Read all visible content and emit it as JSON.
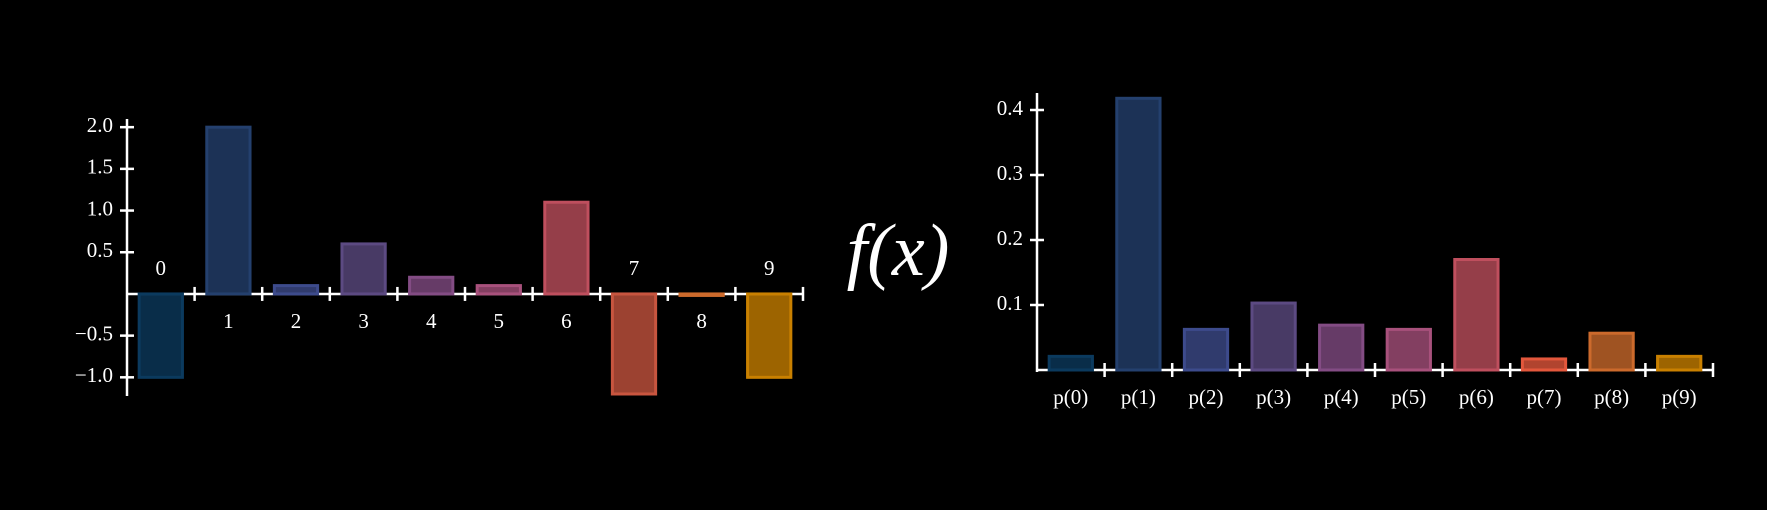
{
  "chart_data": [
    {
      "type": "bar",
      "categories": [
        "0",
        "1",
        "2",
        "3",
        "4",
        "5",
        "6",
        "7",
        "8",
        "9"
      ],
      "values": [
        -1.0,
        2.0,
        0.1,
        0.6,
        0.2,
        0.1,
        1.1,
        -1.2,
        0.0,
        -1.0
      ],
      "colors": [
        "#0b3a5e",
        "#24406e",
        "#3d4b8c",
        "#5c4a82",
        "#834c84",
        "#a8517c",
        "#bf4f5e",
        "#c8553f",
        "#cc6a2c",
        "#c98000"
      ],
      "ylim": [
        -1.2,
        2.05
      ],
      "yticks": [
        {
          "value": -1.0,
          "label": "−1.0"
        },
        {
          "value": -0.5,
          "label": "−0.5"
        },
        {
          "value": 0.5,
          "label": "0.5"
        },
        {
          "value": 1.0,
          "label": "1.0"
        },
        {
          "value": 1.5,
          "label": "1.5"
        },
        {
          "value": 2.0,
          "label": "2.0"
        }
      ]
    },
    {
      "type": "bar",
      "categories": [
        "p(0)",
        "p(1)",
        "p(2)",
        "p(3)",
        "p(4)",
        "p(5)",
        "p(6)",
        "p(7)",
        "p(8)",
        "p(9)"
      ],
      "values": [
        0.021,
        0.418,
        0.0625,
        0.103,
        0.069,
        0.0625,
        0.17,
        0.017,
        0.0566,
        0.021
      ],
      "colors": [
        "#0b3a5e",
        "#24406e",
        "#3d4b8c",
        "#5c4a82",
        "#834c84",
        "#a8517c",
        "#bf4f5e",
        "#e3573c",
        "#cc6a2c",
        "#c98000"
      ],
      "ylim": [
        0,
        0.42
      ],
      "yticks": [
        0.1,
        0.2,
        0.3,
        0.4
      ]
    }
  ],
  "operator_label": "f(x)"
}
